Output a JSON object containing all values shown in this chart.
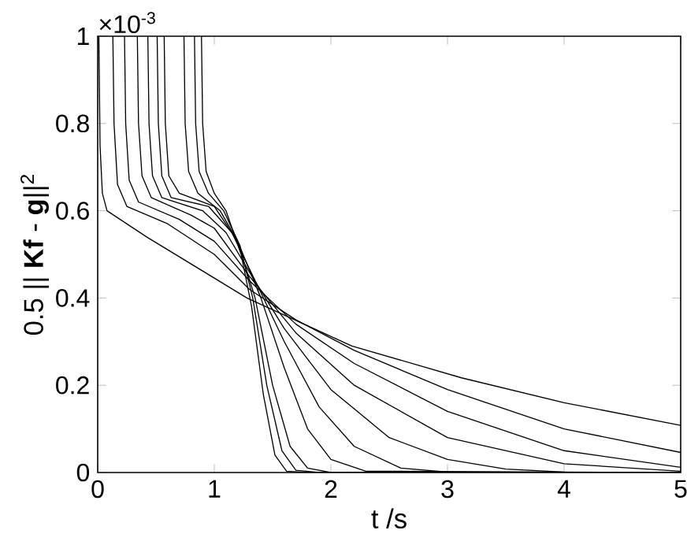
{
  "chart_data": {
    "type": "line",
    "xlabel": "t /s",
    "ylabel": "0.5 || **Kf** - **g**||$^{2}$",
    "annotations": [
      "×10$^{-3}$"
    ],
    "xlim": [
      0,
      5
    ],
    "ylim": [
      0,
      1
    ],
    "xticks": [
      0,
      1,
      2,
      3,
      4,
      5
    ],
    "yticks": [
      0,
      0.2,
      0.4,
      0.6,
      0.8,
      1
    ],
    "grid": false,
    "series": [
      {
        "color": "#000000",
        "x": [
          0.01,
          0.02,
          0.04,
          0.08,
          0.42,
          1.28,
          2.18,
          3.12,
          4.0,
          5
        ],
        "values": [
          1,
          0.75,
          0.64,
          0.6,
          0.54,
          0.4,
          0.29,
          0.217,
          0.16,
          0.108
        ]
      },
      {
        "color": "#000000",
        "x": [
          0.13,
          0.14,
          0.17,
          0.25,
          0.6,
          1.0,
          1.3,
          1.7,
          2.2,
          3.0,
          4.0,
          5
        ],
        "values": [
          1,
          0.8,
          0.66,
          0.61,
          0.57,
          0.5,
          0.42,
          0.35,
          0.28,
          0.19,
          0.1,
          0.046
        ]
      },
      {
        "color": "#000000",
        "x": [
          0.23,
          0.24,
          0.27,
          0.35,
          0.7,
          1.0,
          1.3,
          1.7,
          2.2,
          3.0,
          4.0,
          5
        ],
        "values": [
          1,
          0.8,
          0.67,
          0.62,
          0.58,
          0.53,
          0.44,
          0.34,
          0.25,
          0.14,
          0.05,
          0.012
        ]
      },
      {
        "color": "#000000",
        "x": [
          0.34,
          0.35,
          0.38,
          0.46,
          0.8,
          1.0,
          1.3,
          1.7,
          2.2,
          3.0,
          4.0,
          5
        ],
        "values": [
          1,
          0.8,
          0.68,
          0.63,
          0.59,
          0.56,
          0.45,
          0.32,
          0.2,
          0.08,
          0.02,
          0.003
        ]
      },
      {
        "color": "#000000",
        "x": [
          0.43,
          0.44,
          0.47,
          0.55,
          0.9,
          1.1,
          1.3,
          1.6,
          2.0,
          2.5,
          3.0,
          3.5,
          4.0,
          5
        ],
        "values": [
          1,
          0.8,
          0.68,
          0.63,
          0.6,
          0.55,
          0.46,
          0.33,
          0.19,
          0.08,
          0.03,
          0.008,
          0.001,
          0
        ]
      },
      {
        "color": "#000000",
        "x": [
          0.51,
          0.52,
          0.55,
          0.63,
          0.95,
          1.15,
          1.35,
          1.6,
          1.9,
          2.2,
          2.6,
          3.0,
          5
        ],
        "values": [
          1,
          0.8,
          0.68,
          0.63,
          0.61,
          0.55,
          0.44,
          0.3,
          0.15,
          0.06,
          0.01,
          0.001,
          0
        ]
      },
      {
        "color": "#000000",
        "x": [
          0.57,
          0.58,
          0.61,
          0.7,
          1.0,
          1.2,
          1.4,
          1.6,
          1.8,
          2.0,
          2.3,
          5
        ],
        "values": [
          1,
          0.8,
          0.68,
          0.64,
          0.61,
          0.53,
          0.4,
          0.24,
          0.1,
          0.03,
          0.003,
          0
        ]
      },
      {
        "color": "#000000",
        "x": [
          0.74,
          0.75,
          0.78,
          0.86,
          1.05,
          1.2,
          1.35,
          1.5,
          1.65,
          1.8,
          2.0,
          5
        ],
        "values": [
          1,
          0.8,
          0.69,
          0.64,
          0.6,
          0.53,
          0.4,
          0.2,
          0.06,
          0.01,
          0,
          0
        ]
      },
      {
        "color": "#000000",
        "x": [
          0.83,
          0.84,
          0.87,
          0.95,
          1.08,
          1.22,
          1.33,
          1.45,
          1.58,
          1.7,
          1.9,
          5
        ],
        "values": [
          1,
          0.8,
          0.69,
          0.64,
          0.6,
          0.52,
          0.4,
          0.2,
          0.05,
          0.005,
          0,
          0
        ]
      },
      {
        "color": "#000000",
        "x": [
          0.89,
          0.9,
          0.93,
          1.0,
          1.1,
          1.23,
          1.32,
          1.42,
          1.52,
          1.62,
          1.8,
          5
        ],
        "values": [
          1,
          0.8,
          0.69,
          0.64,
          0.6,
          0.5,
          0.38,
          0.18,
          0.04,
          0.003,
          0,
          0
        ]
      }
    ]
  }
}
